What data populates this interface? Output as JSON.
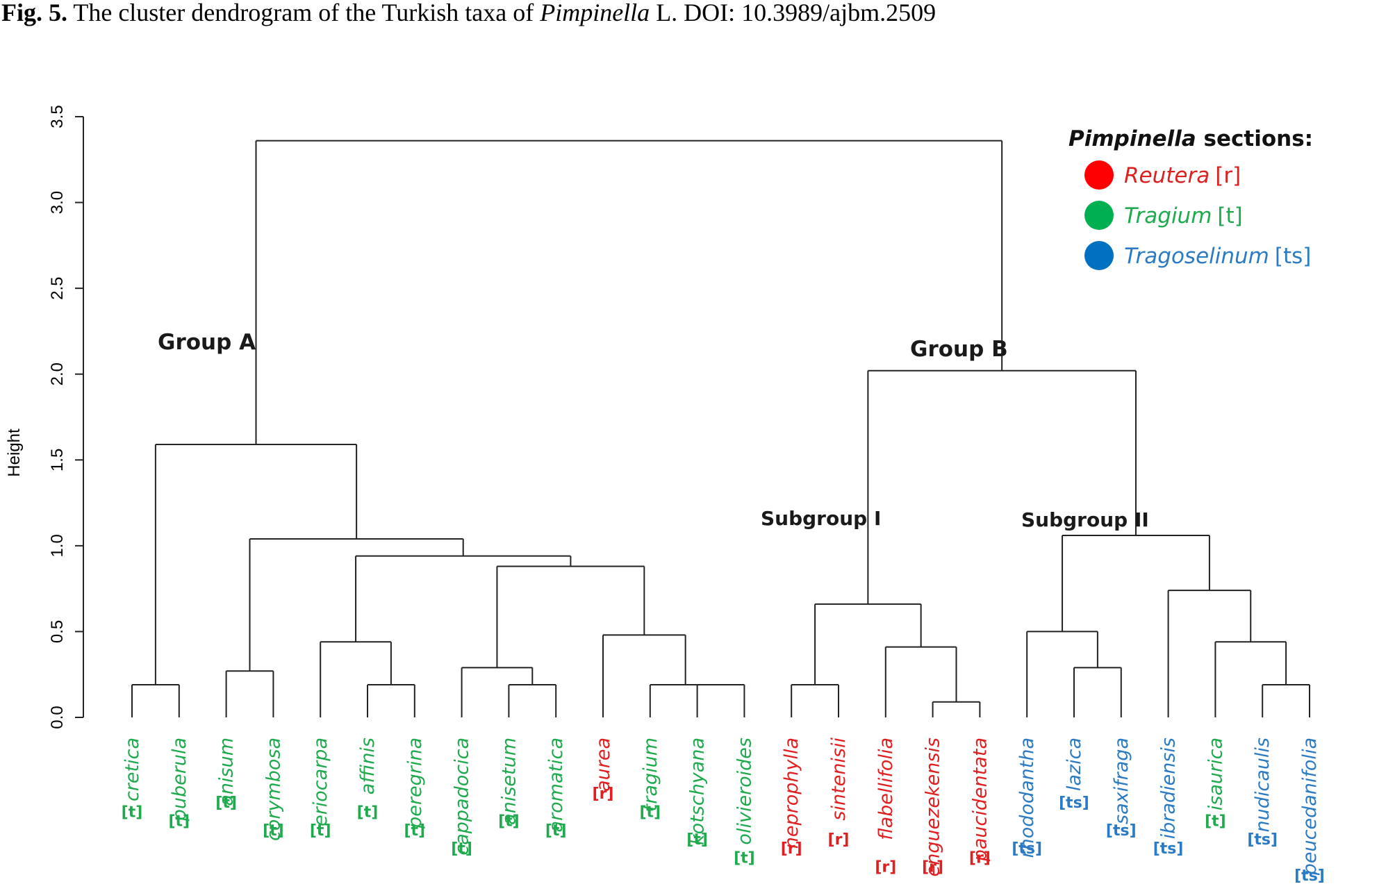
{
  "caption": {
    "label": "Fig. 5.",
    "text_before": " The cluster dendrogram of the Turkish taxa of ",
    "genus": "Pimpinella",
    "text_after": " L. DOI: 10.3989/ajbm.2509"
  },
  "axis": {
    "title": "Height",
    "ticks": [
      "0.0",
      "0.5",
      "1.0",
      "1.5",
      "2.0",
      "2.5",
      "3.0",
      "3.5"
    ],
    "range": [
      0,
      3.5
    ]
  },
  "annotations": {
    "group_a": "Group A",
    "group_b": "Group B",
    "subgroup_1": "Subgroup  I",
    "subgroup_2": "Subgroup  II"
  },
  "legend": {
    "title_genus": "Pimpinella",
    "title_rest": " sections:",
    "items": [
      {
        "name": "Reutera",
        "code": "[r]",
        "color": "#ff0000",
        "text_color": "#dd1f1f"
      },
      {
        "name": "Tragium",
        "code": "[t]",
        "color": "#00b050",
        "text_color": "#1faa4d"
      },
      {
        "name": "Tragoselinum",
        "code": "[ts]",
        "color": "#0070c0",
        "text_color": "#2a7bc4"
      }
    ]
  },
  "colors": {
    "r": "#e02020",
    "t": "#1faa4d",
    "ts": "#2a7bc4"
  },
  "chart_data": {
    "type": "dendrogram",
    "ylabel": "Height",
    "ylim": [
      0,
      3.5
    ],
    "leaves": [
      {
        "name": "cretica",
        "code": "[t]",
        "section": "t"
      },
      {
        "name": "puberula",
        "code": "[t]",
        "section": "t"
      },
      {
        "name": "anisum",
        "code": "[t]",
        "section": "t"
      },
      {
        "name": "corymbosa",
        "code": "[t]",
        "section": "t"
      },
      {
        "name": "eriocarpa",
        "code": "[t]",
        "section": "t"
      },
      {
        "name": "affinis",
        "code": "[t]",
        "section": "t"
      },
      {
        "name": "peregrina",
        "code": "[t]",
        "section": "t"
      },
      {
        "name": "cappadocica",
        "code": "[t]",
        "section": "t"
      },
      {
        "name": "anisetum",
        "code": "[t]",
        "section": "t"
      },
      {
        "name": "aromatica",
        "code": "[t]",
        "section": "t"
      },
      {
        "name": "aurea",
        "code": "[r]",
        "section": "r"
      },
      {
        "name": "tragium",
        "code": "[t]",
        "section": "t"
      },
      {
        "name": "kotschyana",
        "code": "[t]",
        "section": "t"
      },
      {
        "name": "olivieroides",
        "code": "[t]",
        "section": "t"
      },
      {
        "name": "neprophylla",
        "code": "[r]",
        "section": "r"
      },
      {
        "name": "sintenisii",
        "code": "[r]",
        "section": "r"
      },
      {
        "name": "flabellifolia",
        "code": "[r]",
        "section": "r"
      },
      {
        "name": "enguezekensis",
        "code": "[r]",
        "section": "r"
      },
      {
        "name": "paucidentata",
        "code": "[r]",
        "section": "r"
      },
      {
        "name": "rhododantha",
        "code": "[ts]",
        "section": "ts"
      },
      {
        "name": "lazica",
        "code": "[ts]",
        "section": "ts"
      },
      {
        "name": "saxifraga",
        "code": "[ts]",
        "section": "ts"
      },
      {
        "name": "ibradiensis",
        "code": "[ts]",
        "section": "ts"
      },
      {
        "name": "isaurica",
        "code": "[t]",
        "section": "t"
      },
      {
        "name": "nudicaulis",
        "code": "[ts]",
        "section": "ts"
      },
      {
        "name": "peucedanifolia",
        "code": "[ts]",
        "section": "ts"
      }
    ],
    "merges": [
      {
        "id": "m1",
        "children": [
          "L0",
          "L1"
        ],
        "height": 0.19
      },
      {
        "id": "m2",
        "children": [
          "L2",
          "L3"
        ],
        "height": 0.27
      },
      {
        "id": "m3",
        "children": [
          "L5",
          "L6"
        ],
        "height": 0.19
      },
      {
        "id": "m4",
        "children": [
          "L4",
          "m3"
        ],
        "height": 0.44
      },
      {
        "id": "m5",
        "children": [
          "L8",
          "L9"
        ],
        "height": 0.19
      },
      {
        "id": "m6",
        "children": [
          "L7",
          "m5"
        ],
        "height": 0.29
      },
      {
        "id": "m7",
        "children": [
          "L12",
          "L13"
        ],
        "height": 0.19
      },
      {
        "id": "m8",
        "children": [
          "L11",
          "m7"
        ],
        "height": 0.19
      },
      {
        "id": "m9",
        "children": [
          "L10",
          "m8"
        ],
        "height": 0.48
      },
      {
        "id": "m10",
        "children": [
          "m6",
          "m9"
        ],
        "height": 0.88
      },
      {
        "id": "m11",
        "children": [
          "m4",
          "m10"
        ],
        "height": 0.94
      },
      {
        "id": "m12",
        "children": [
          "m2",
          "m11"
        ],
        "height": 1.04
      },
      {
        "id": "m13",
        "children": [
          "m1",
          "m12"
        ],
        "height": 1.59
      },
      {
        "id": "m14",
        "children": [
          "L14",
          "L15"
        ],
        "height": 0.19
      },
      {
        "id": "m15",
        "children": [
          "L17",
          "L18"
        ],
        "height": 0.09
      },
      {
        "id": "m16",
        "children": [
          "L16",
          "m15"
        ],
        "height": 0.41
      },
      {
        "id": "m17",
        "children": [
          "m14",
          "m16"
        ],
        "height": 0.66
      },
      {
        "id": "m18",
        "children": [
          "L20",
          "L21"
        ],
        "height": 0.29
      },
      {
        "id": "m19",
        "children": [
          "L19",
          "m18"
        ],
        "height": 0.5
      },
      {
        "id": "m20",
        "children": [
          "L24",
          "L25"
        ],
        "height": 0.19
      },
      {
        "id": "m21",
        "children": [
          "L23",
          "m20"
        ],
        "height": 0.44
      },
      {
        "id": "m22",
        "children": [
          "L22",
          "m21"
        ],
        "height": 0.74
      },
      {
        "id": "m23",
        "children": [
          "m19",
          "m22"
        ],
        "height": 1.06
      },
      {
        "id": "m24",
        "children": [
          "m17",
          "m23"
        ],
        "height": 2.02
      },
      {
        "id": "m25",
        "children": [
          "m13",
          "m24"
        ],
        "height": 3.36
      }
    ]
  }
}
